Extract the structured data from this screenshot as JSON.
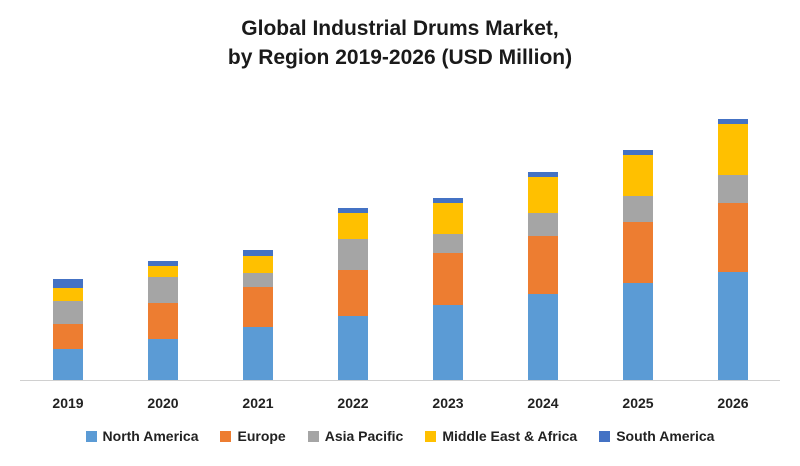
{
  "title_line1": "Global Industrial Drums Market,",
  "title_line2": "by Region 2019-2026 (USD Million)",
  "chart_data": {
    "type": "bar",
    "stacked": true,
    "title": "Global Industrial Drums Market, by Region 2019-2026 (USD Million)",
    "categories": [
      "2019",
      "2020",
      "2021",
      "2022",
      "2023",
      "2024",
      "2025",
      "2026"
    ],
    "series": [
      {
        "name": "North America",
        "color": "#5B9BD5",
        "values": [
          31,
          41,
          53,
          64,
          75,
          86,
          97,
          108
        ]
      },
      {
        "name": "Europe",
        "color": "#ED7D31",
        "values": [
          25,
          36,
          40,
          46,
          52,
          58,
          61,
          69
        ]
      },
      {
        "name": "Asia Pacific",
        "color": "#A5A5A5",
        "values": [
          23,
          26,
          14,
          31,
          19,
          23,
          26,
          28
        ]
      },
      {
        "name": "Middle East & Africa",
        "color": "#FFC000",
        "values": [
          13,
          11,
          17,
          26,
          31,
          36,
          41,
          51
        ]
      },
      {
        "name": "South America",
        "color": "#4472C4",
        "values": [
          9,
          5,
          6,
          5,
          5,
          5,
          5,
          5
        ]
      }
    ],
    "yaxis_visible": false,
    "grid": false,
    "legend_position": "bottom"
  }
}
